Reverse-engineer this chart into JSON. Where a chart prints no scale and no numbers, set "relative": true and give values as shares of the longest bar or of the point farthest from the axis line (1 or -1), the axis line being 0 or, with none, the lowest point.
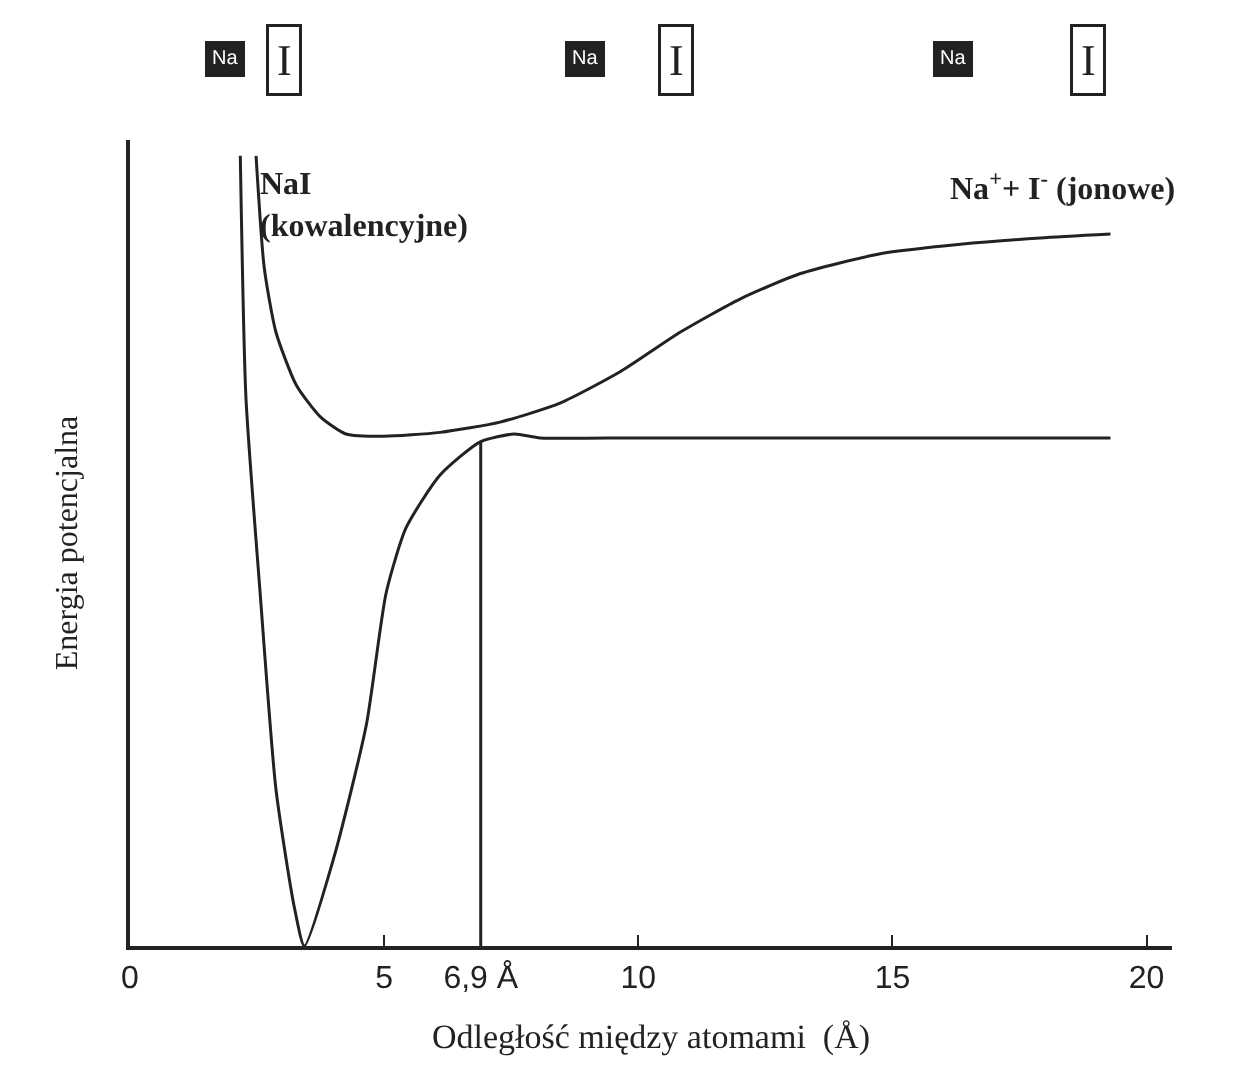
{
  "chart_data": {
    "type": "line",
    "relative": true,
    "xlabel": "Odległość między atomami  (Å)",
    "ylabel": "Energia potencjalna",
    "xlim": [
      0,
      20.5
    ],
    "xticks": [
      0,
      5,
      {
        "value": 6.9,
        "label": "6,9 Å"
      },
      10,
      15,
      20
    ],
    "marker": "none",
    "line_style": "solid",
    "series": [
      {
        "color": "#222222",
        "x": [
          2.17,
          2.28,
          2.56,
          2.87,
          3.23,
          3.43,
          4.02,
          4.65,
          5.04,
          5.43,
          6.1,
          6.89,
          7.56,
          8.07,
          10,
          15,
          19.29
        ],
        "values": [
          1.0,
          0.695,
          0.447,
          0.199,
          0.05,
          0,
          0.114,
          0.28,
          0.447,
          0.529,
          0.596,
          0.638,
          0.648,
          0.643,
          0.643,
          0.643,
          0.643
        ]
      },
      {
        "color": "#222222",
        "x": [
          2.48,
          2.64,
          2.87,
          3.27,
          3.74,
          4.25,
          5.0,
          6.1,
          7.28,
          8.46,
          9.65,
          10.83,
          12.01,
          13.19,
          14.76,
          16.34,
          17.91,
          19.29
        ],
        "values": [
          1.0,
          0.859,
          0.777,
          0.71,
          0.67,
          0.648,
          0.645,
          0.65,
          0.663,
          0.687,
          0.727,
          0.777,
          0.819,
          0.851,
          0.876,
          0.888,
          0.896,
          0.901
        ]
      },
      {
        "color": "#222222",
        "x": [
          6.9,
          6.9
        ],
        "values": [
          0,
          0.638
        ]
      }
    ],
    "annotations": [
      "NaI\n(kowalencyjne)",
      "Na$^{+}$+ I$^{-}$ (jonowe)",
      "Na",
      "I",
      "Na",
      "I",
      "Na",
      "I"
    ]
  }
}
